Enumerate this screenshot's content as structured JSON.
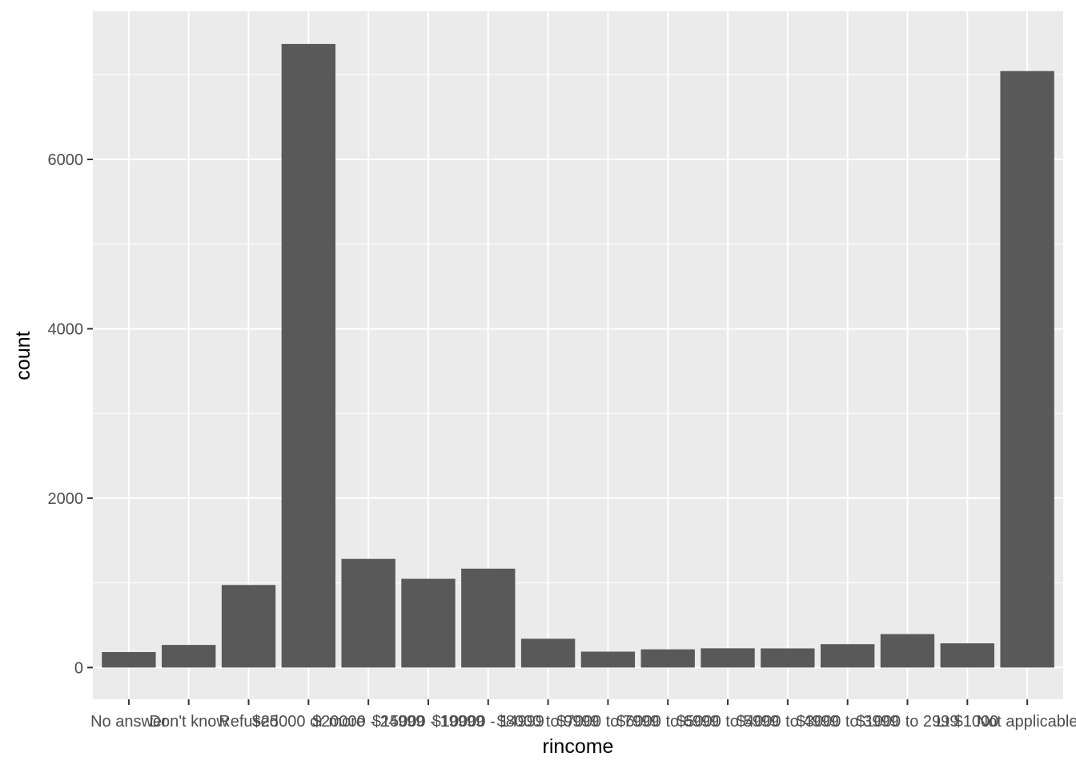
{
  "chart_data": {
    "type": "bar",
    "title": "",
    "xlabel": "rincome",
    "ylabel": "count",
    "categories": [
      "No answer",
      "Don't know",
      "Refused",
      "$25000 or more",
      "$20000 - 24999",
      "$15000 - 19999",
      "$10000 - 14999",
      "$8000 to 9999",
      "$7000 to 7999",
      "$6000 to 6999",
      "$5000 to 5999",
      "$4000 to 4999",
      "$3000 to 3999",
      "$1000 to 2999",
      "Lt $1000",
      "Not applicable"
    ],
    "values": [
      183,
      267,
      975,
      7363,
      1283,
      1048,
      1168,
      340,
      188,
      215,
      227,
      226,
      276,
      395,
      286,
      7043
    ],
    "yticks": [
      0,
      2000,
      4000,
      6000
    ],
    "ylim": [
      -375,
      7750
    ],
    "grid": true,
    "colors": {
      "panel": "#ebebeb",
      "grid_major": "#ffffff",
      "bar": "#595959",
      "tick": "#333333",
      "tick_text": "#4d4d4d"
    }
  }
}
